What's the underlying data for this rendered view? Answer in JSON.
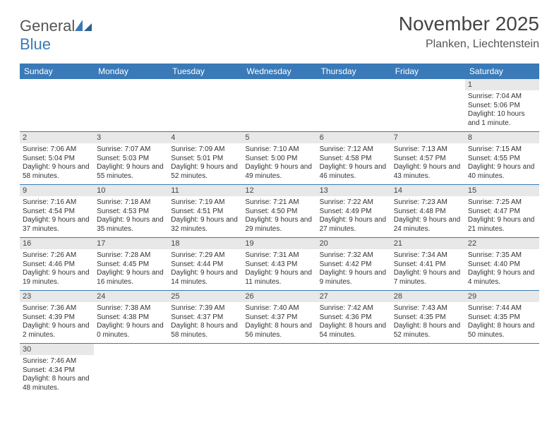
{
  "logo": {
    "text1": "General",
    "text2": "Blue"
  },
  "title": "November 2025",
  "location": "Planken, Liechtenstein",
  "theme": {
    "header_bg": "#3a7ab8",
    "header_text": "#ffffff",
    "daynum_bg": "#e8e8e8",
    "row_divider": "#3a7ab8",
    "page_bg": "#ffffff",
    "title_color": "#444444",
    "location_color": "#555555",
    "body_text": "#333333",
    "title_fontsize": 28,
    "location_fontsize": 16,
    "header_fontsize": 12,
    "cell_fontsize": 10
  },
  "weekdays": [
    "Sunday",
    "Monday",
    "Tuesday",
    "Wednesday",
    "Thursday",
    "Friday",
    "Saturday"
  ],
  "weeks": [
    [
      {
        "n": "",
        "sr": "",
        "ss": "",
        "dl": ""
      },
      {
        "n": "",
        "sr": "",
        "ss": "",
        "dl": ""
      },
      {
        "n": "",
        "sr": "",
        "ss": "",
        "dl": ""
      },
      {
        "n": "",
        "sr": "",
        "ss": "",
        "dl": ""
      },
      {
        "n": "",
        "sr": "",
        "ss": "",
        "dl": ""
      },
      {
        "n": "",
        "sr": "",
        "ss": "",
        "dl": ""
      },
      {
        "n": "1",
        "sr": "Sunrise: 7:04 AM",
        "ss": "Sunset: 5:06 PM",
        "dl": "Daylight: 10 hours and 1 minute."
      }
    ],
    [
      {
        "n": "2",
        "sr": "Sunrise: 7:06 AM",
        "ss": "Sunset: 5:04 PM",
        "dl": "Daylight: 9 hours and 58 minutes."
      },
      {
        "n": "3",
        "sr": "Sunrise: 7:07 AM",
        "ss": "Sunset: 5:03 PM",
        "dl": "Daylight: 9 hours and 55 minutes."
      },
      {
        "n": "4",
        "sr": "Sunrise: 7:09 AM",
        "ss": "Sunset: 5:01 PM",
        "dl": "Daylight: 9 hours and 52 minutes."
      },
      {
        "n": "5",
        "sr": "Sunrise: 7:10 AM",
        "ss": "Sunset: 5:00 PM",
        "dl": "Daylight: 9 hours and 49 minutes."
      },
      {
        "n": "6",
        "sr": "Sunrise: 7:12 AM",
        "ss": "Sunset: 4:58 PM",
        "dl": "Daylight: 9 hours and 46 minutes."
      },
      {
        "n": "7",
        "sr": "Sunrise: 7:13 AM",
        "ss": "Sunset: 4:57 PM",
        "dl": "Daylight: 9 hours and 43 minutes."
      },
      {
        "n": "8",
        "sr": "Sunrise: 7:15 AM",
        "ss": "Sunset: 4:55 PM",
        "dl": "Daylight: 9 hours and 40 minutes."
      }
    ],
    [
      {
        "n": "9",
        "sr": "Sunrise: 7:16 AM",
        "ss": "Sunset: 4:54 PM",
        "dl": "Daylight: 9 hours and 37 minutes."
      },
      {
        "n": "10",
        "sr": "Sunrise: 7:18 AM",
        "ss": "Sunset: 4:53 PM",
        "dl": "Daylight: 9 hours and 35 minutes."
      },
      {
        "n": "11",
        "sr": "Sunrise: 7:19 AM",
        "ss": "Sunset: 4:51 PM",
        "dl": "Daylight: 9 hours and 32 minutes."
      },
      {
        "n": "12",
        "sr": "Sunrise: 7:21 AM",
        "ss": "Sunset: 4:50 PM",
        "dl": "Daylight: 9 hours and 29 minutes."
      },
      {
        "n": "13",
        "sr": "Sunrise: 7:22 AM",
        "ss": "Sunset: 4:49 PM",
        "dl": "Daylight: 9 hours and 27 minutes."
      },
      {
        "n": "14",
        "sr": "Sunrise: 7:23 AM",
        "ss": "Sunset: 4:48 PM",
        "dl": "Daylight: 9 hours and 24 minutes."
      },
      {
        "n": "15",
        "sr": "Sunrise: 7:25 AM",
        "ss": "Sunset: 4:47 PM",
        "dl": "Daylight: 9 hours and 21 minutes."
      }
    ],
    [
      {
        "n": "16",
        "sr": "Sunrise: 7:26 AM",
        "ss": "Sunset: 4:46 PM",
        "dl": "Daylight: 9 hours and 19 minutes."
      },
      {
        "n": "17",
        "sr": "Sunrise: 7:28 AM",
        "ss": "Sunset: 4:45 PM",
        "dl": "Daylight: 9 hours and 16 minutes."
      },
      {
        "n": "18",
        "sr": "Sunrise: 7:29 AM",
        "ss": "Sunset: 4:44 PM",
        "dl": "Daylight: 9 hours and 14 minutes."
      },
      {
        "n": "19",
        "sr": "Sunrise: 7:31 AM",
        "ss": "Sunset: 4:43 PM",
        "dl": "Daylight: 9 hours and 11 minutes."
      },
      {
        "n": "20",
        "sr": "Sunrise: 7:32 AM",
        "ss": "Sunset: 4:42 PM",
        "dl": "Daylight: 9 hours and 9 minutes."
      },
      {
        "n": "21",
        "sr": "Sunrise: 7:34 AM",
        "ss": "Sunset: 4:41 PM",
        "dl": "Daylight: 9 hours and 7 minutes."
      },
      {
        "n": "22",
        "sr": "Sunrise: 7:35 AM",
        "ss": "Sunset: 4:40 PM",
        "dl": "Daylight: 9 hours and 4 minutes."
      }
    ],
    [
      {
        "n": "23",
        "sr": "Sunrise: 7:36 AM",
        "ss": "Sunset: 4:39 PM",
        "dl": "Daylight: 9 hours and 2 minutes."
      },
      {
        "n": "24",
        "sr": "Sunrise: 7:38 AM",
        "ss": "Sunset: 4:38 PM",
        "dl": "Daylight: 9 hours and 0 minutes."
      },
      {
        "n": "25",
        "sr": "Sunrise: 7:39 AM",
        "ss": "Sunset: 4:37 PM",
        "dl": "Daylight: 8 hours and 58 minutes."
      },
      {
        "n": "26",
        "sr": "Sunrise: 7:40 AM",
        "ss": "Sunset: 4:37 PM",
        "dl": "Daylight: 8 hours and 56 minutes."
      },
      {
        "n": "27",
        "sr": "Sunrise: 7:42 AM",
        "ss": "Sunset: 4:36 PM",
        "dl": "Daylight: 8 hours and 54 minutes."
      },
      {
        "n": "28",
        "sr": "Sunrise: 7:43 AM",
        "ss": "Sunset: 4:35 PM",
        "dl": "Daylight: 8 hours and 52 minutes."
      },
      {
        "n": "29",
        "sr": "Sunrise: 7:44 AM",
        "ss": "Sunset: 4:35 PM",
        "dl": "Daylight: 8 hours and 50 minutes."
      }
    ],
    [
      {
        "n": "30",
        "sr": "Sunrise: 7:46 AM",
        "ss": "Sunset: 4:34 PM",
        "dl": "Daylight: 8 hours and 48 minutes."
      },
      {
        "n": "",
        "sr": "",
        "ss": "",
        "dl": ""
      },
      {
        "n": "",
        "sr": "",
        "ss": "",
        "dl": ""
      },
      {
        "n": "",
        "sr": "",
        "ss": "",
        "dl": ""
      },
      {
        "n": "",
        "sr": "",
        "ss": "",
        "dl": ""
      },
      {
        "n": "",
        "sr": "",
        "ss": "",
        "dl": ""
      },
      {
        "n": "",
        "sr": "",
        "ss": "",
        "dl": ""
      }
    ]
  ]
}
